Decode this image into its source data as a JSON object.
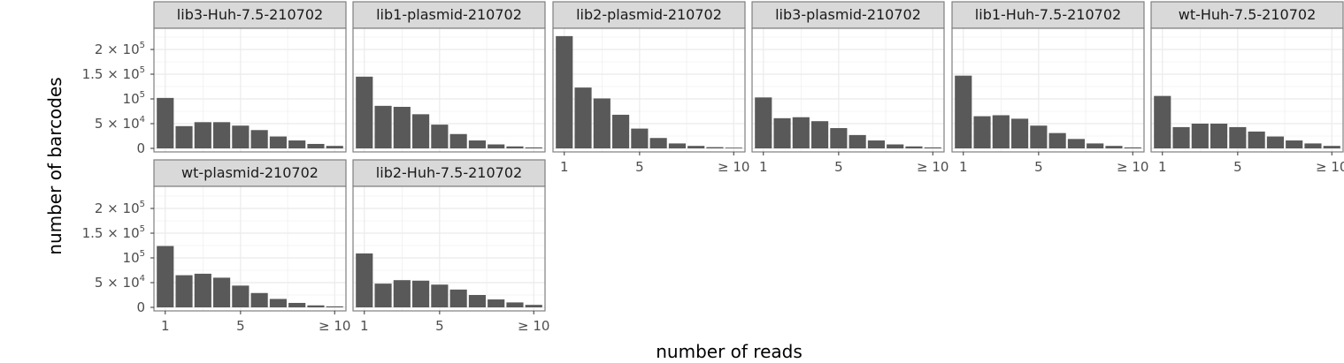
{
  "chart_data": {
    "type": "bar",
    "xlabel": "number of reads",
    "ylabel": "number of barcodes",
    "categories": [
      1,
      2,
      3,
      4,
      5,
      6,
      7,
      8,
      9,
      10
    ],
    "x_tick_values": [
      1,
      5,
      10
    ],
    "x_tick_labels": [
      "1",
      "5",
      "≥ 10"
    ],
    "ylim": [
      0,
      240000
    ],
    "y_ticks": [
      {
        "value": 0,
        "mantissa": "0",
        "power": ""
      },
      {
        "value": 50000,
        "mantissa": "5 × 10",
        "power": "4"
      },
      {
        "value": 100000,
        "mantissa": "10",
        "power": "5"
      },
      {
        "value": 150000,
        "mantissa": "1.5 × 10",
        "power": "5"
      },
      {
        "value": 200000,
        "mantissa": "2 × 10",
        "power": "5"
      }
    ],
    "grid": true,
    "bar_color": "#595959",
    "panels": [
      {
        "name": "lib3-Huh-7.5-210702",
        "values": [
          102000,
          45000,
          53000,
          53000,
          46000,
          37000,
          24000,
          16000,
          9000,
          5000
        ]
      },
      {
        "name": "lib1-plasmid-210702",
        "values": [
          145000,
          86000,
          84000,
          69000,
          48000,
          29000,
          16000,
          8000,
          4000,
          2000
        ]
      },
      {
        "name": "lib2-plasmid-210702",
        "values": [
          227000,
          123000,
          101000,
          68000,
          40000,
          21000,
          10000,
          5000,
          2500,
          1500
        ]
      },
      {
        "name": "lib3-plasmid-210702",
        "values": [
          103000,
          61000,
          63000,
          55000,
          41000,
          27000,
          16000,
          8000,
          4000,
          2000
        ]
      },
      {
        "name": "lib1-Huh-7.5-210702",
        "values": [
          147000,
          65000,
          67000,
          60000,
          46000,
          31000,
          19000,
          10000,
          5000,
          2000
        ]
      },
      {
        "name": "wt-Huh-7.5-210702",
        "values": [
          106000,
          43000,
          50000,
          50000,
          43000,
          34000,
          24000,
          16000,
          10000,
          5000
        ]
      },
      {
        "name": "wt-plasmid-210702",
        "values": [
          124000,
          65000,
          68000,
          60000,
          44000,
          29000,
          17000,
          9000,
          4000,
          2000
        ]
      },
      {
        "name": "lib2-Huh-7.5-210702",
        "values": [
          109000,
          48000,
          55000,
          54000,
          46000,
          36000,
          25000,
          16000,
          10000,
          5000
        ]
      }
    ]
  }
}
